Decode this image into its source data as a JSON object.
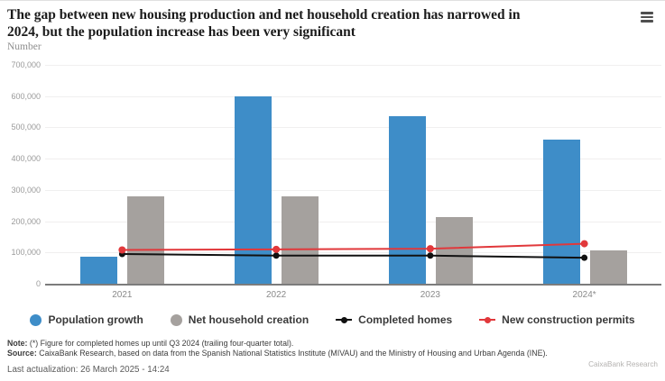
{
  "header": {
    "title_line1": "The gap between new housing production and net household creation has narrowed in",
    "title_line2": "2024, but the population increase has been very significant",
    "subtitle": "Number"
  },
  "chart_data": {
    "type": "bar+line",
    "categories": [
      "2021",
      "2022",
      "2023",
      "2024*"
    ],
    "series": [
      {
        "name": "Population growth",
        "type": "bar",
        "color": "#3e8dc8",
        "values": [
          85000,
          600000,
          535000,
          460000
        ]
      },
      {
        "name": "Net household creation",
        "type": "bar",
        "color": "#a5a19e",
        "values": [
          280000,
          280000,
          212000,
          108000
        ]
      },
      {
        "name": "Completed homes",
        "type": "line",
        "color": "#111111",
        "values": [
          95000,
          90000,
          90000,
          83000
        ]
      },
      {
        "name": "New construction permits",
        "type": "line",
        "color": "#e1383b",
        "values": [
          108000,
          110000,
          112000,
          128000
        ]
      }
    ],
    "title": "The gap between new housing production and net household creation has narrowed in 2024, but the population increase has been very significant",
    "xlabel": "",
    "ylabel": "Number",
    "ylim": [
      0,
      700000
    ],
    "yticks": [
      0,
      100000,
      200000,
      300000,
      400000,
      500000,
      600000,
      700000
    ],
    "grid": true,
    "grid_color": "#f0efef",
    "axis_color": "#7c7c7c",
    "legend_position": "bottom"
  },
  "footer": {
    "note_label": "Note:",
    "note_text": " (*) Figure for completed homes up until Q3 2024 (trailing four-quarter total).",
    "source_label": "Source:",
    "source_text": " CaixaBank Research, based on data from the Spanish National Statistics Institute (MIVAU) and the Ministry of Housing and Urban Agenda (INE).",
    "last_update": "Last actualization: 26 March 2025 - 14:24",
    "watermark": "CaixaBank Research"
  }
}
